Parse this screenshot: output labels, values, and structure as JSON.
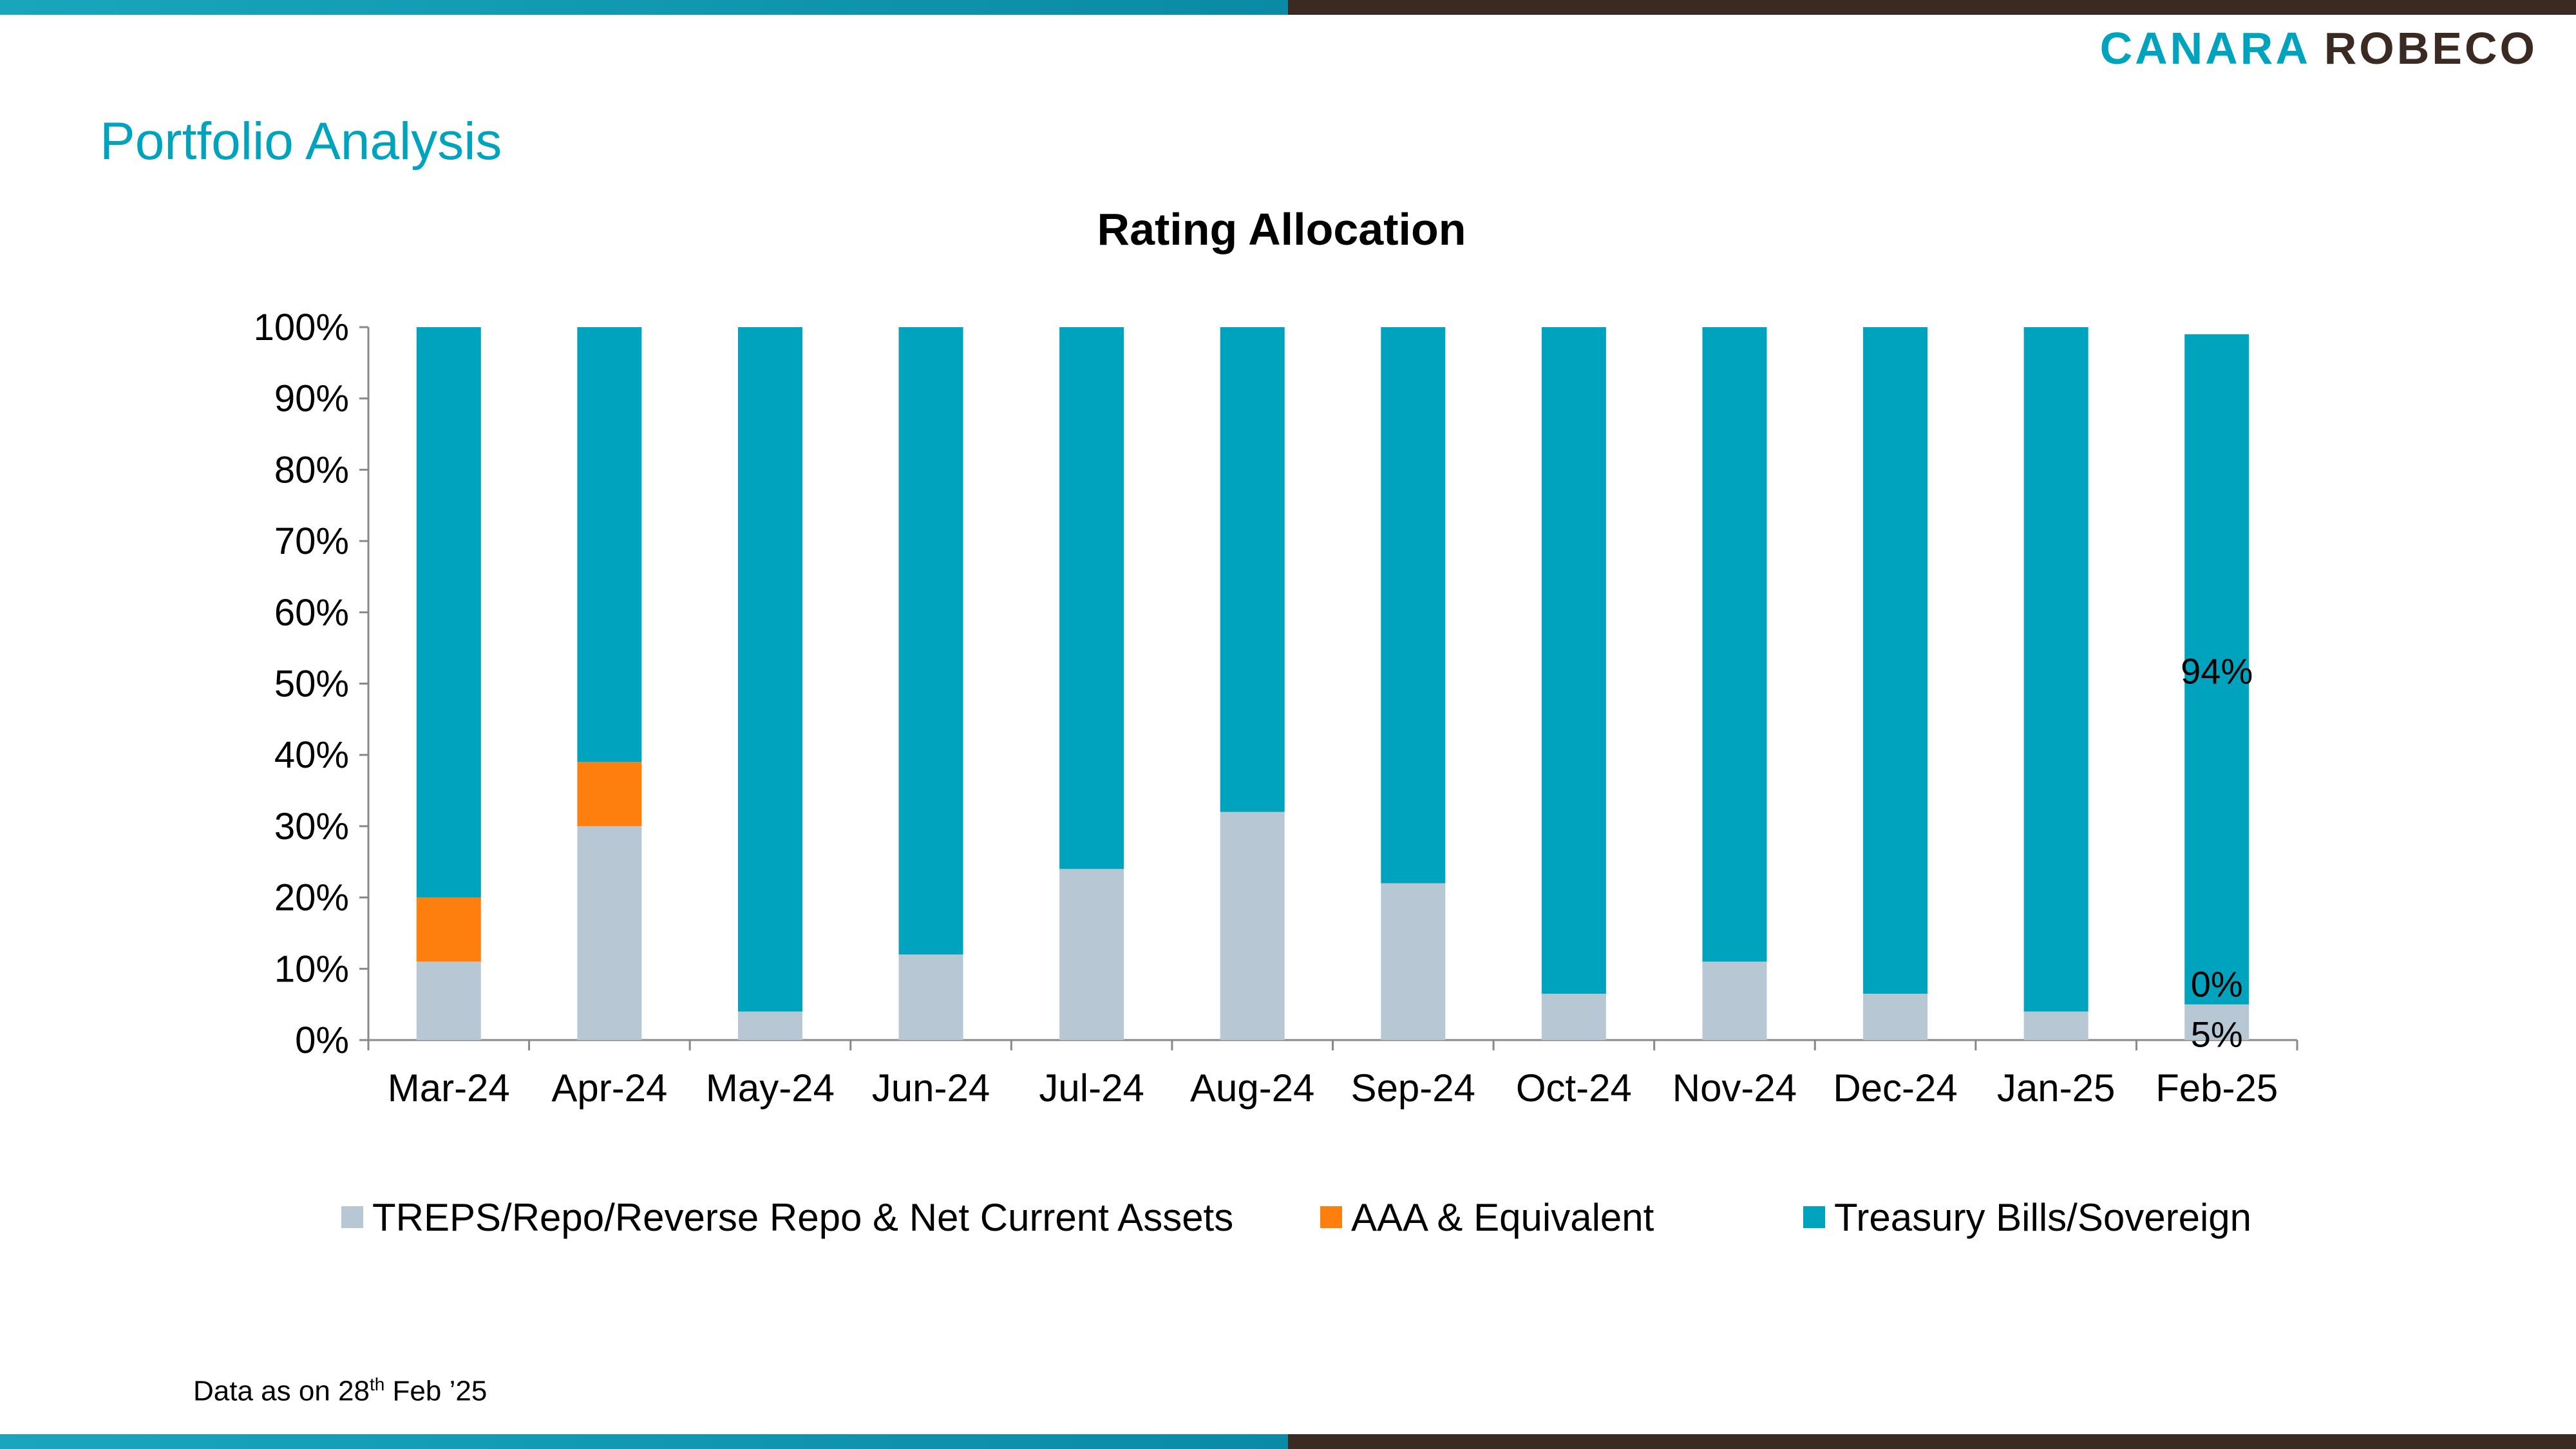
{
  "header": {
    "logo_part1": "CANARA",
    "logo_part2": "ROBECO",
    "page_title": "Portfolio Analysis"
  },
  "footer": {
    "note_prefix": "Data as on 28",
    "note_sup": "th",
    "note_suffix": " Feb  ’25"
  },
  "colors": {
    "accent": "#00a3bd",
    "brown": "#3a2a22"
  },
  "chart_data": {
    "type": "bar",
    "stacked": true,
    "percent": true,
    "title": "Rating Allocation",
    "xlabel": "",
    "ylabel": "",
    "ylim": [
      0,
      100
    ],
    "yticks": [
      "0%",
      "10%",
      "20%",
      "30%",
      "40%",
      "50%",
      "60%",
      "70%",
      "80%",
      "90%",
      "100%"
    ],
    "categories": [
      "Mar-24",
      "Apr-24",
      "May-24",
      "Jun-24",
      "Jul-24",
      "Aug-24",
      "Sep-24",
      "Oct-24",
      "Nov-24",
      "Dec-24",
      "Jan-25",
      "Feb-25"
    ],
    "series": [
      {
        "name": "TREPS/Repo/Reverse Repo & Net Current Assets",
        "color": "#b8c7d4",
        "values": [
          11,
          30,
          4,
          12,
          24,
          32,
          22,
          6.5,
          11,
          6.5,
          4,
          5
        ]
      },
      {
        "name": "AAA & Equivalent",
        "color": "#ff7f0e",
        "values": [
          9,
          9,
          0,
          0,
          0,
          0,
          0,
          0,
          0,
          0,
          0,
          0
        ]
      },
      {
        "name": "Treasury Bills/Sovereign",
        "color": "#00a3bd",
        "values": [
          80,
          61,
          96,
          88,
          76,
          68,
          78,
          93.5,
          89,
          93.5,
          96,
          94
        ]
      }
    ],
    "data_labels": [
      {
        "category": "Feb-25",
        "series": "Treasury Bills/Sovereign",
        "text": "94%"
      },
      {
        "category": "Feb-25",
        "series": "AAA & Equivalent",
        "text": "0%"
      },
      {
        "category": "Feb-25",
        "series": "TREPS/Repo/Reverse Repo & Net Current Assets",
        "text": "5%"
      }
    ],
    "legend_position": "bottom",
    "grid": false
  }
}
